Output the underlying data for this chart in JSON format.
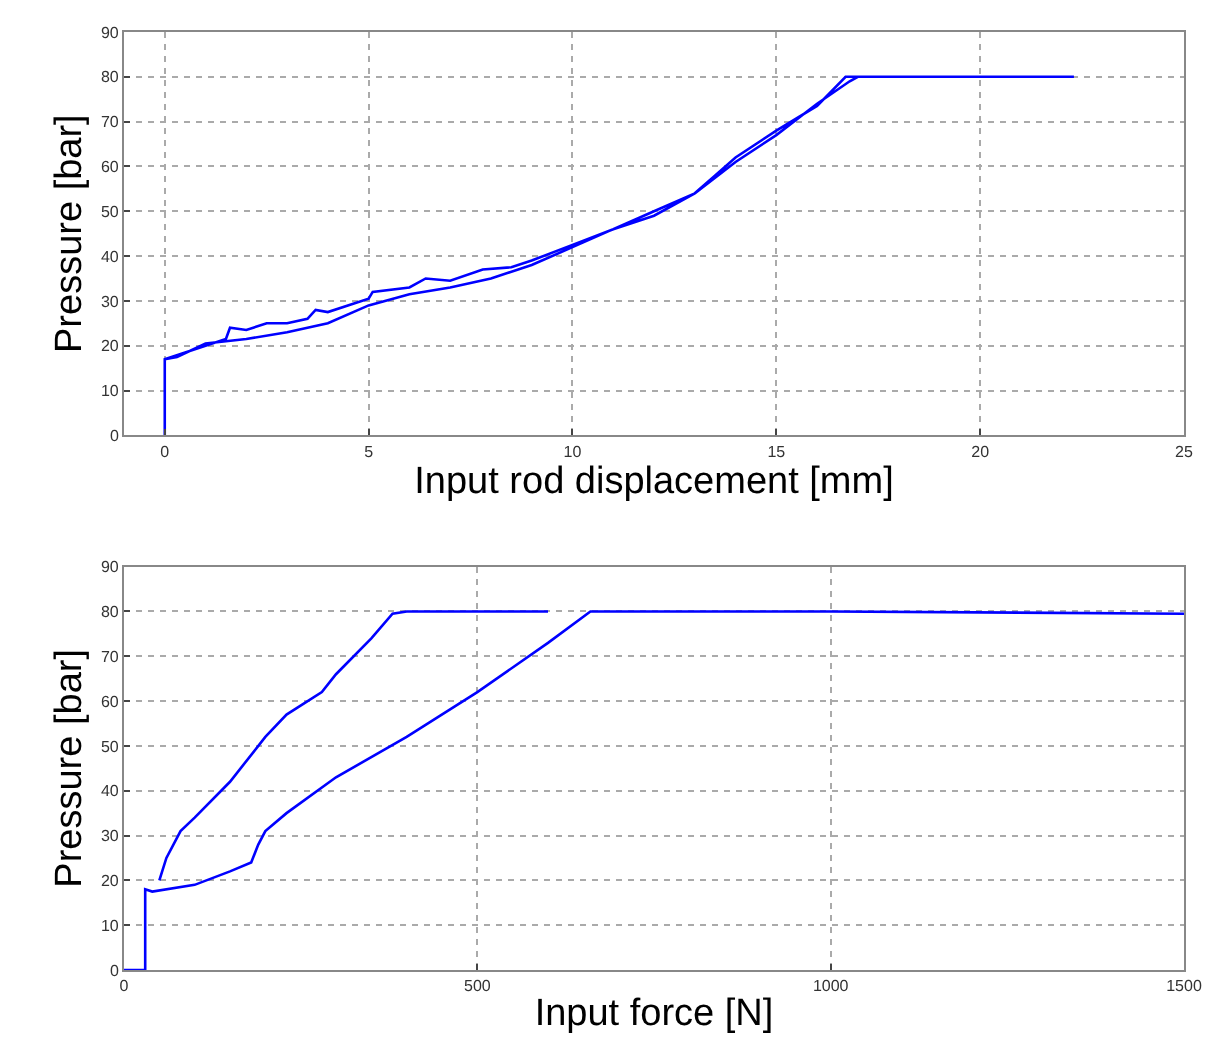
{
  "chart_data": [
    {
      "type": "line",
      "xlabel": "Input rod displacement [mm]",
      "ylabel": "Pressure [bar]",
      "xlim": [
        -1,
        25
      ],
      "ylim": [
        0,
        90
      ],
      "xticks": [
        0,
        5,
        10,
        15,
        20,
        25
      ],
      "yticks": [
        0,
        10,
        20,
        30,
        40,
        50,
        60,
        70,
        80,
        90
      ],
      "grid": true,
      "series": [
        {
          "color": "#0000ff",
          "x": [
            0,
            0,
            0.5,
            1,
            1.5,
            1.6,
            2,
            2.5,
            3,
            3.5,
            3.7,
            4,
            5,
            5.1,
            6,
            6.4,
            7,
            7.8,
            8.5,
            9,
            10,
            11,
            12,
            13,
            13.5,
            14,
            15,
            16,
            16.7,
            17,
            18,
            20,
            22.3,
            17,
            16.8,
            16,
            15,
            14,
            13,
            12,
            11,
            10,
            9,
            8,
            7,
            6,
            5,
            4,
            3,
            2,
            1,
            0.3,
            0
          ],
          "values": [
            0,
            17,
            18.5,
            20,
            21.5,
            24,
            23.5,
            25,
            25,
            26,
            28,
            27.5,
            30.5,
            32,
            33,
            35,
            34.5,
            37,
            37.5,
            39,
            42.5,
            46,
            50,
            54,
            58,
            62,
            68,
            73.5,
            80,
            80,
            80,
            80,
            80,
            80,
            79,
            74,
            67,
            61,
            54,
            49,
            46,
            42,
            38,
            35,
            33,
            31.5,
            29,
            25,
            23,
            21.5,
            20.5,
            17.5,
            17
          ]
        }
      ]
    },
    {
      "type": "line",
      "xlabel": "Input force [N]",
      "ylabel": "Pressure [bar]",
      "xlim": [
        0,
        1500
      ],
      "ylim": [
        0,
        90
      ],
      "xticks": [
        0,
        500,
        1000,
        1500
      ],
      "yticks": [
        0,
        10,
        20,
        30,
        40,
        50,
        60,
        70,
        80,
        90
      ],
      "grid": true,
      "series": [
        {
          "color": "#0000ff",
          "x": [
            0,
            30,
            30,
            40,
            100,
            150,
            180,
            190,
            200,
            230,
            300,
            400,
            500,
            600,
            660,
            700,
            1000,
            1500
          ],
          "values": [
            0,
            0,
            18,
            17.5,
            19,
            22,
            24,
            28,
            31,
            35,
            43,
            52,
            62,
            73,
            80,
            80,
            80,
            79.5
          ]
        },
        {
          "color": "#0000ff",
          "x": [
            50,
            60,
            80,
            100,
            150,
            200,
            230,
            280,
            300,
            350,
            380,
            400,
            600
          ],
          "values": [
            20,
            25,
            31,
            34,
            42,
            52,
            57,
            62,
            66,
            74,
            79.5,
            80,
            80
          ]
        }
      ]
    }
  ]
}
